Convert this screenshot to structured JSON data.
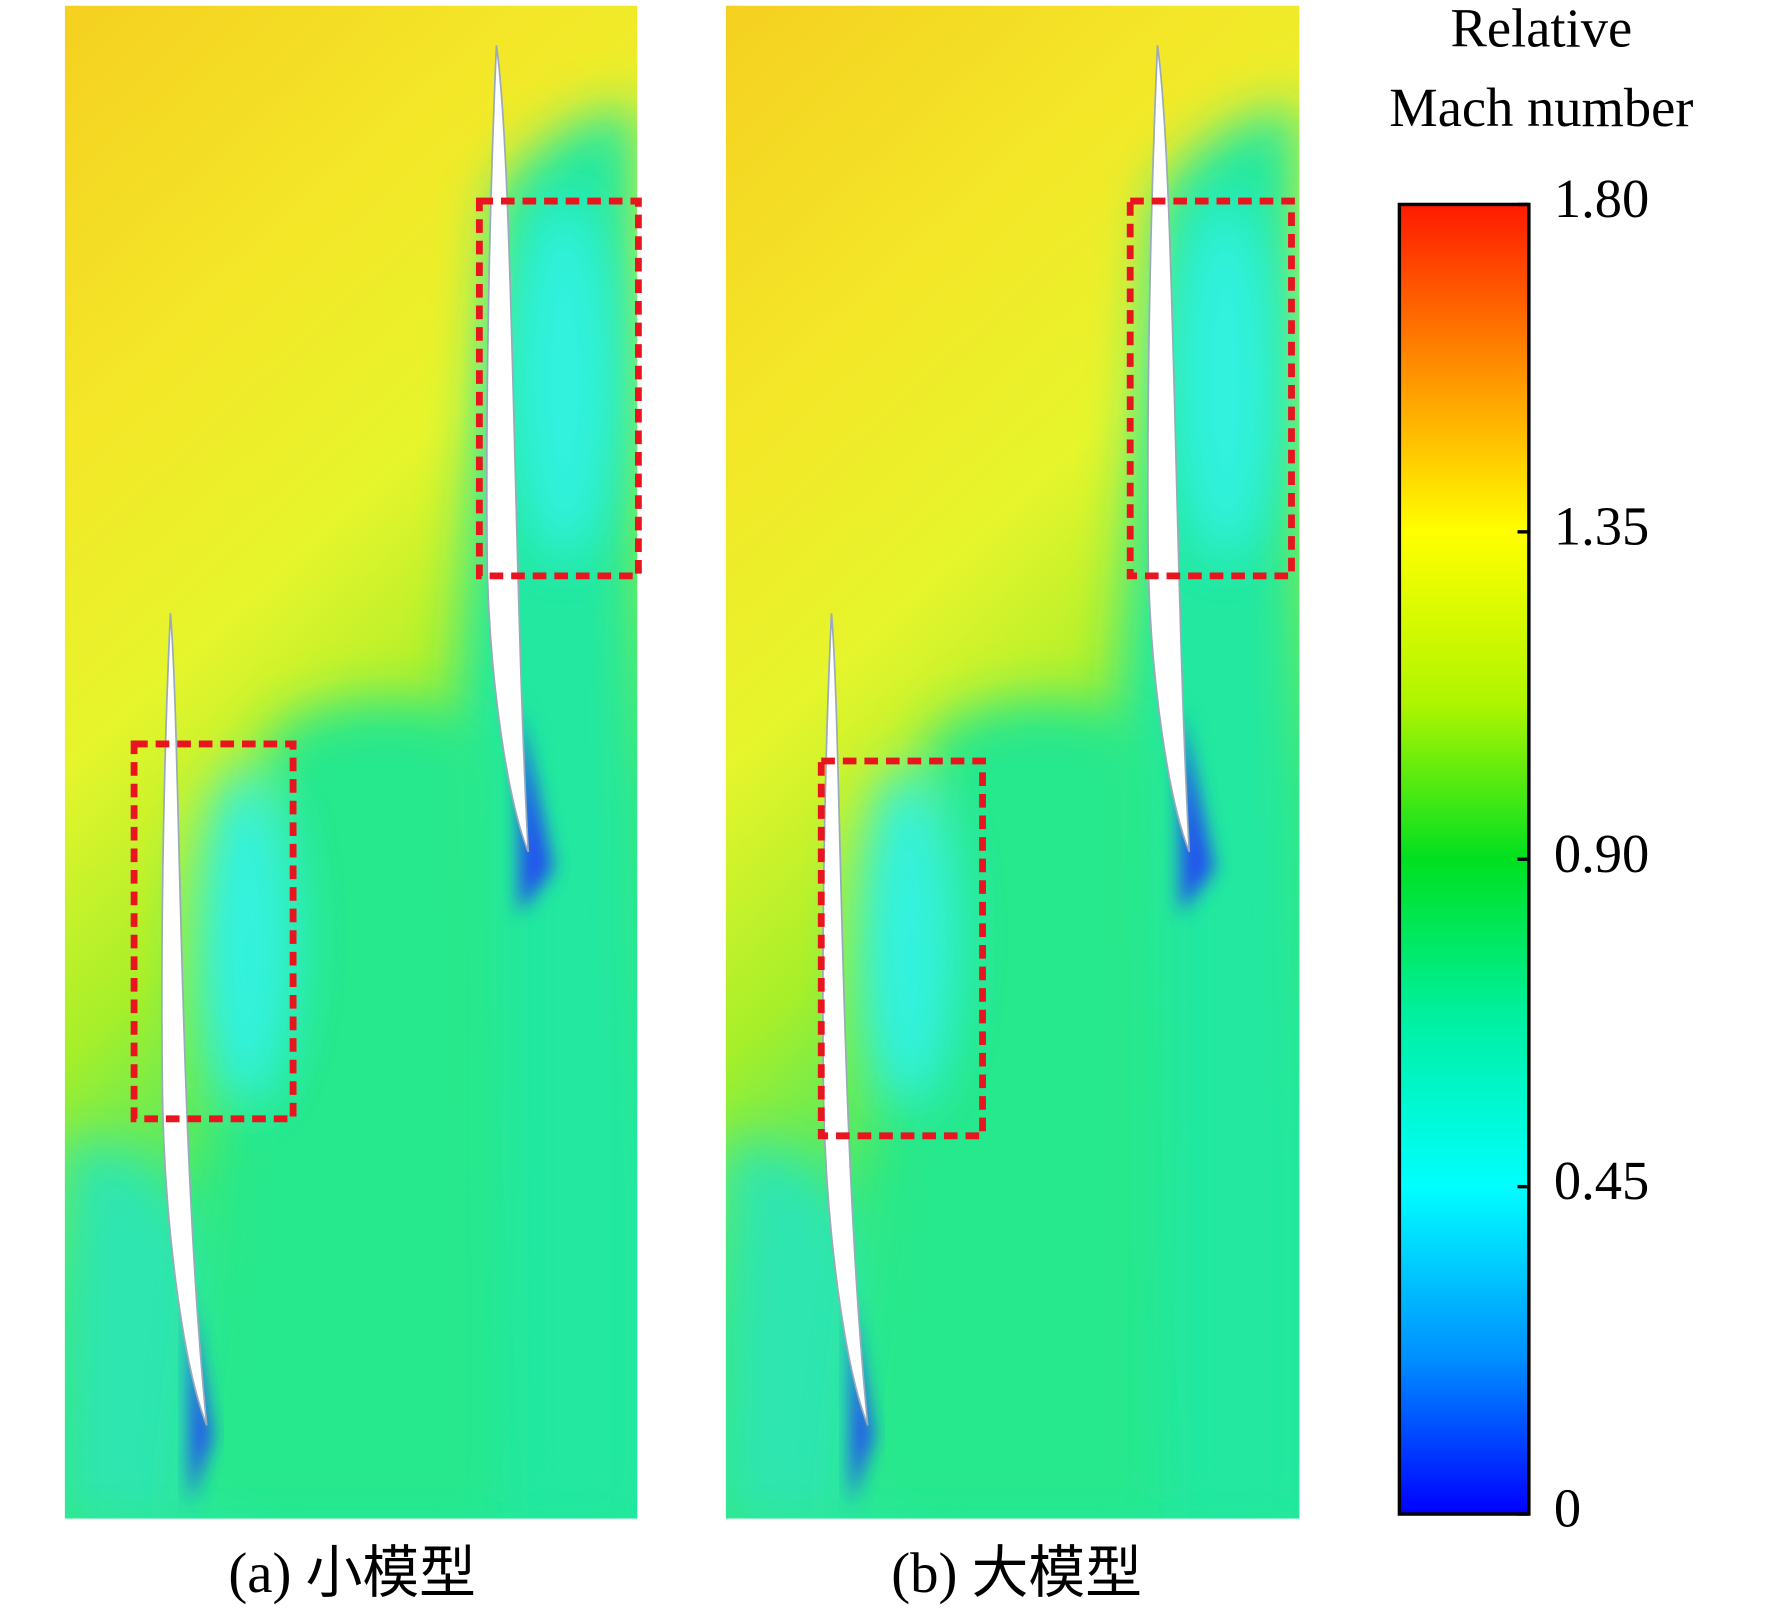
{
  "colorbar": {
    "title": [
      "Relative",
      "Mach number"
    ],
    "range": [
      0,
      1.8
    ],
    "ticks": [
      0,
      0.45,
      {
        "value": 0.9,
        "label": "0.90"
      },
      1.35,
      {
        "value": 1.8,
        "label": "1.80"
      }
    ]
  },
  "panels": [
    {
      "caption": "(a) 小模型"
    },
    {
      "caption": "(b) 大模型"
    }
  ]
}
